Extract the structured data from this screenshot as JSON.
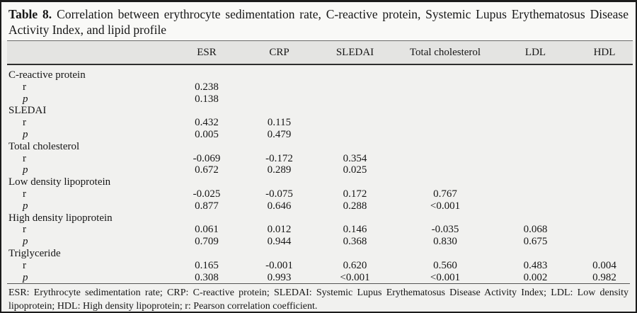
{
  "title": {
    "label": "Table 8.",
    "text": "Correlation between erythrocyte sedimentation rate, C-reactive protein, Systemic Lupus Erythematosus Disease Activity Index, and lipid profile"
  },
  "table": {
    "columns": [
      "",
      "ESR",
      "CRP",
      "SLEDAI",
      "Total cholesterol",
      "LDL",
      "HDL"
    ],
    "row_labels": {
      "r": "r",
      "p": "p"
    },
    "groups": [
      {
        "name": "C-reactive protein",
        "r": [
          "0.238",
          "",
          "",
          "",
          "",
          ""
        ],
        "p": [
          "0.138",
          "",
          "",
          "",
          "",
          ""
        ]
      },
      {
        "name": "SLEDAI",
        "r": [
          "0.432",
          "0.115",
          "",
          "",
          "",
          ""
        ],
        "p": [
          "0.005",
          "0.479",
          "",
          "",
          "",
          ""
        ]
      },
      {
        "name": "Total cholesterol",
        "r": [
          "-0.069",
          "-0.172",
          "0.354",
          "",
          "",
          ""
        ],
        "p": [
          "0.672",
          "0.289",
          "0.025",
          "",
          "",
          ""
        ]
      },
      {
        "name": "Low density lipoprotein",
        "r": [
          "-0.025",
          "-0.075",
          "0.172",
          "0.767",
          "",
          ""
        ],
        "p": [
          "0.877",
          "0.646",
          "0.288",
          "<0.001",
          "",
          ""
        ]
      },
      {
        "name": "High density lipoprotein",
        "r": [
          "0.061",
          "0.012",
          "0.146",
          "-0.035",
          "0.068",
          ""
        ],
        "p": [
          "0.709",
          "0.944",
          "0.368",
          "0.830",
          "0.675",
          ""
        ]
      },
      {
        "name": "Triglyceride",
        "r": [
          "0.165",
          "-0.001",
          "0.620",
          "0.560",
          "0.483",
          "0.004"
        ],
        "p": [
          "0.308",
          "0.993",
          "<0.001",
          "<0.001",
          "0.002",
          "0.982"
        ]
      }
    ]
  },
  "footnote": "ESR: Erythrocyte sedimentation rate; CRP: C-reactive protein; SLEDAI: Systemic Lupus Erythematosus Disease Activity Index; LDL: Low density lipoprotein; HDL: High density lipoprotein; r: Pearson correlation coefficient."
}
